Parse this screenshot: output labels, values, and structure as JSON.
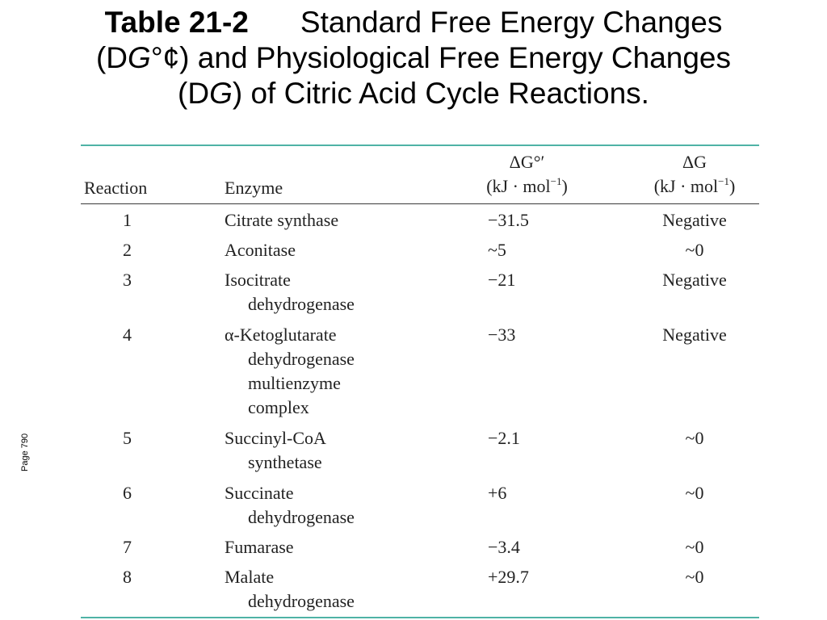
{
  "title": {
    "lead": "Table 21-2",
    "line1_rest": "Standard Free Energy Changes",
    "line2_open": "(D",
    "line2_var": "G",
    "line2_rest": "°¢) and Physiological Free Energy Changes",
    "line3_open": "(D",
    "line3_var": "G",
    "line3_rest": ") of Citric Acid Cycle Reactions."
  },
  "side_note": "Page 790",
  "table": {
    "headers": {
      "reaction": "Reaction",
      "enzyme": "Enzyme",
      "dg0_symbol": "ΔG°′",
      "dg0_units": "(kJ · mol",
      "dg_symbol": "ΔG",
      "dg_units": "(kJ · mol",
      "units_exponent": "−1",
      "units_close": ")"
    },
    "rows": [
      {
        "reaction": "1",
        "enzyme_lines": [
          "Citrate synthase"
        ],
        "dg0": "−31.5",
        "dg": "Negative"
      },
      {
        "reaction": "2",
        "enzyme_lines": [
          "Aconitase"
        ],
        "dg0": "~5",
        "dg": "~0"
      },
      {
        "reaction": "3",
        "enzyme_lines": [
          "Isocitrate",
          "dehydrogenase"
        ],
        "dg0": "−21",
        "dg": "Negative"
      },
      {
        "reaction": "4",
        "enzyme_lines": [
          "α-Ketoglutarate",
          "dehydrogenase",
          "multienzyme",
          "complex"
        ],
        "dg0": "−33",
        "dg": "Negative"
      },
      {
        "reaction": "5",
        "enzyme_lines": [
          "Succinyl-CoA",
          "synthetase"
        ],
        "dg0": "−2.1",
        "dg": "~0"
      },
      {
        "reaction": "6",
        "enzyme_lines": [
          "Succinate",
          "dehydrogenase"
        ],
        "dg0": "+6",
        "dg": "~0"
      },
      {
        "reaction": "7",
        "enzyme_lines": [
          "Fumarase"
        ],
        "dg0": "−3.4",
        "dg": "~0"
      },
      {
        "reaction": "8",
        "enzyme_lines": [
          "Malate",
          "dehydrogenase"
        ],
        "dg0": "+29.7",
        "dg": "~0"
      }
    ]
  }
}
